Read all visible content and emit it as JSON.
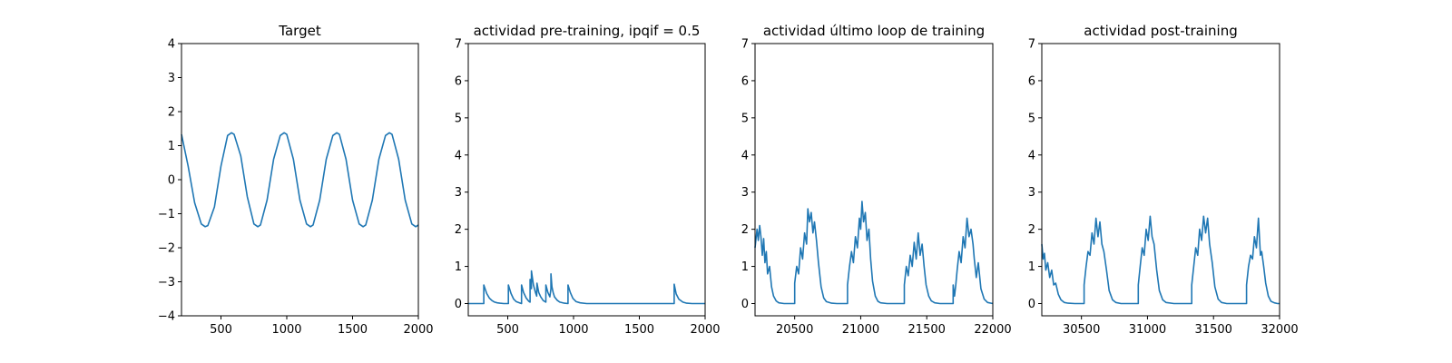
{
  "colors": {
    "line": "#1f77b4",
    "axes": "#000000",
    "background": "#ffffff"
  },
  "chart_data": [
    {
      "type": "line",
      "title": "Target",
      "xlabel": "",
      "ylabel": "",
      "xlim": [
        200,
        2000
      ],
      "ylim": [
        -4,
        4
      ],
      "xticks": [
        500,
        1000,
        1500,
        2000
      ],
      "yticks": [
        -4,
        -3,
        -2,
        -1,
        0,
        1,
        2,
        3,
        4
      ],
      "grid": false,
      "series": [
        {
          "x": [
            200,
            250,
            300,
            350,
            380,
            400,
            450,
            500,
            550,
            580,
            600,
            650,
            700,
            750,
            780,
            800,
            850,
            900,
            950,
            980,
            1000,
            1050,
            1100,
            1150,
            1180,
            1200,
            1250,
            1300,
            1350,
            1380,
            1400,
            1450,
            1500,
            1550,
            1580,
            1600,
            1650,
            1700,
            1750,
            1780,
            1800,
            1850,
            1900,
            1950,
            1980,
            2000
          ],
          "values": [
            1.33,
            0.4,
            -0.68,
            -1.3,
            -1.38,
            -1.35,
            -0.8,
            0.4,
            1.3,
            1.38,
            1.33,
            0.7,
            -0.5,
            -1.3,
            -1.38,
            -1.33,
            -0.6,
            0.6,
            1.3,
            1.38,
            1.33,
            0.6,
            -0.6,
            -1.3,
            -1.38,
            -1.33,
            -0.6,
            0.6,
            1.3,
            1.38,
            1.33,
            0.6,
            -0.6,
            -1.3,
            -1.38,
            -1.33,
            -0.6,
            0.6,
            1.3,
            1.38,
            1.33,
            0.6,
            -0.6,
            -1.3,
            -1.38,
            -1.33
          ]
        }
      ]
    },
    {
      "type": "line",
      "title": "actividad pre-training, ipqif = 0.5",
      "xlabel": "",
      "ylabel": "",
      "xlim": [
        200,
        2000
      ],
      "ylim": [
        -0.33,
        7
      ],
      "xticks": [
        500,
        1000,
        1500,
        2000
      ],
      "yticks": [
        0,
        1,
        2,
        3,
        4,
        5,
        6,
        7
      ],
      "grid": false,
      "series": [
        {
          "x": [
            200,
            318,
            318,
            340,
            360,
            380,
            400,
            420,
            440,
            470,
            500,
            505,
            505,
            525,
            545,
            565,
            590,
            605,
            605,
            620,
            640,
            660,
            670,
            670,
            680,
            680,
            695,
            710,
            720,
            722,
            735,
            750,
            770,
            790,
            790,
            805,
            820,
            828,
            828,
            836,
            845,
            855,
            875,
            895,
            930,
            958,
            958,
            975,
            995,
            1020,
            1050,
            1100,
            1760,
            1765,
            1765,
            1780,
            1800,
            1830,
            1860,
            1900,
            2000
          ],
          "values": [
            0,
            0,
            0.5,
            0.27,
            0.15,
            0.08,
            0.04,
            0.02,
            0.01,
            0,
            0,
            0,
            0.5,
            0.27,
            0.12,
            0.05,
            0.02,
            0,
            0.5,
            0.3,
            0.15,
            0.06,
            0.04,
            0.65,
            0.4,
            0.88,
            0.5,
            0.3,
            0.2,
            0.55,
            0.3,
            0.18,
            0.08,
            0.04,
            0.5,
            0.3,
            0.18,
            0.4,
            0.8,
            0.45,
            0.3,
            0.18,
            0.09,
            0.04,
            0.01,
            0,
            0.5,
            0.3,
            0.14,
            0.05,
            0.02,
            0,
            0,
            0,
            0.52,
            0.26,
            0.12,
            0.04,
            0.01,
            0,
            0
          ]
        }
      ]
    },
    {
      "type": "line",
      "title": "actividad último loop de training",
      "xlabel": "",
      "ylabel": "",
      "xlim": [
        20200,
        22000
      ],
      "ylim": [
        -0.33,
        7
      ],
      "xticks": [
        20500,
        21000,
        21500,
        22000
      ],
      "yticks": [
        0,
        1,
        2,
        3,
        4,
        5,
        6,
        7
      ],
      "grid": false,
      "series": [
        {
          "x": [
            20200,
            20215,
            20225,
            20235,
            20245,
            20255,
            20265,
            20275,
            20285,
            20295,
            20310,
            20325,
            20340,
            20360,
            20380,
            20420,
            20470,
            20500,
            20500,
            20515,
            20530,
            20545,
            20560,
            20575,
            20590,
            20600,
            20612,
            20625,
            20638,
            20650,
            20665,
            20680,
            20700,
            20720,
            20740,
            20780,
            20820,
            20900,
            20900,
            20915,
            20930,
            20945,
            20960,
            20975,
            20990,
            21000,
            21010,
            21022,
            21035,
            21048,
            21062,
            21075,
            21090,
            21110,
            21130,
            21150,
            21200,
            21250,
            21330,
            21330,
            21345,
            21360,
            21375,
            21390,
            21405,
            21420,
            21435,
            21450,
            21465,
            21480,
            21495,
            21515,
            21535,
            21560,
            21600,
            21650,
            21680,
            21700,
            21700,
            21710,
            21720,
            21730,
            21745,
            21760,
            21775,
            21790,
            21805,
            21820,
            21835,
            21850,
            21860,
            21875,
            21890,
            21910,
            21935,
            21960,
            22000
          ],
          "values": [
            1.5,
            2.0,
            1.7,
            2.1,
            1.8,
            1.3,
            1.75,
            1.1,
            1.4,
            0.8,
            1.0,
            0.45,
            0.2,
            0.07,
            0.02,
            0,
            0,
            0,
            0.55,
            1.0,
            0.8,
            1.5,
            1.2,
            1.9,
            1.6,
            2.55,
            2.2,
            2.45,
            1.9,
            2.2,
            1.7,
            1.1,
            0.45,
            0.15,
            0.05,
            0.01,
            0,
            0,
            0.5,
            1.0,
            1.4,
            1.1,
            1.8,
            1.5,
            2.3,
            2.0,
            2.75,
            2.2,
            2.45,
            1.7,
            2.0,
            1.2,
            0.6,
            0.2,
            0.06,
            0.02,
            0,
            0,
            0,
            0.5,
            1.0,
            0.75,
            1.3,
            1.0,
            1.65,
            1.2,
            1.9,
            1.3,
            1.6,
            1.0,
            0.5,
            0.2,
            0.07,
            0.02,
            0,
            0,
            0,
            0,
            0.5,
            0.2,
            0.5,
            0.9,
            1.4,
            1.1,
            1.8,
            1.5,
            2.3,
            1.8,
            2.0,
            1.6,
            1.2,
            0.7,
            1.1,
            0.4,
            0.12,
            0.03,
            0
          ]
        }
      ]
    },
    {
      "type": "line",
      "title": "actividad post-training",
      "xlabel": "",
      "ylabel": "",
      "xlim": [
        30200,
        32000
      ],
      "ylim": [
        -0.33,
        7
      ],
      "xticks": [
        30500,
        31000,
        31500,
        32000
      ],
      "yticks": [
        0,
        1,
        2,
        3,
        4,
        5,
        6,
        7
      ],
      "grid": false,
      "series": [
        {
          "x": [
            30200,
            30210,
            30220,
            30230,
            30245,
            30260,
            30275,
            30290,
            30305,
            30325,
            30345,
            30370,
            30400,
            30450,
            30500,
            30520,
            30520,
            30535,
            30550,
            30565,
            30580,
            30595,
            30610,
            30625,
            30640,
            30655,
            30670,
            30690,
            30710,
            30735,
            30760,
            30800,
            30850,
            30900,
            30930,
            30930,
            30945,
            30960,
            30975,
            30990,
            31005,
            31020,
            31035,
            31050,
            31070,
            31090,
            31115,
            31140,
            31200,
            31250,
            31320,
            31335,
            31335,
            31350,
            31365,
            31380,
            31395,
            31410,
            31425,
            31440,
            31455,
            31470,
            31490,
            31510,
            31535,
            31560,
            31600,
            31650,
            31720,
            31750,
            31750,
            31765,
            31780,
            31795,
            31810,
            31825,
            31840,
            31855,
            31865,
            31880,
            31895,
            31915,
            31935,
            31960,
            31985,
            32000
          ],
          "values": [
            1.6,
            1.2,
            1.35,
            0.9,
            1.1,
            0.7,
            0.9,
            0.5,
            0.55,
            0.25,
            0.1,
            0.03,
            0.01,
            0,
            0,
            0,
            0.5,
            1.0,
            1.4,
            1.3,
            1.9,
            1.6,
            2.3,
            1.8,
            2.2,
            1.6,
            1.4,
            0.9,
            0.35,
            0.1,
            0.03,
            0,
            0,
            0,
            0,
            0.5,
            1.0,
            1.5,
            1.3,
            2.0,
            1.7,
            2.35,
            1.8,
            1.6,
            0.9,
            0.35,
            0.1,
            0.03,
            0,
            0,
            0,
            0,
            0.5,
            1.0,
            1.5,
            1.3,
            2.0,
            1.7,
            2.35,
            1.9,
            2.3,
            1.6,
            1.1,
            0.45,
            0.12,
            0.03,
            0,
            0,
            0,
            0,
            0.5,
            1.0,
            1.3,
            1.2,
            1.8,
            1.5,
            2.3,
            1.3,
            1.4,
            1.0,
            0.55,
            0.2,
            0.06,
            0.02,
            0,
            0
          ]
        }
      ]
    }
  ]
}
